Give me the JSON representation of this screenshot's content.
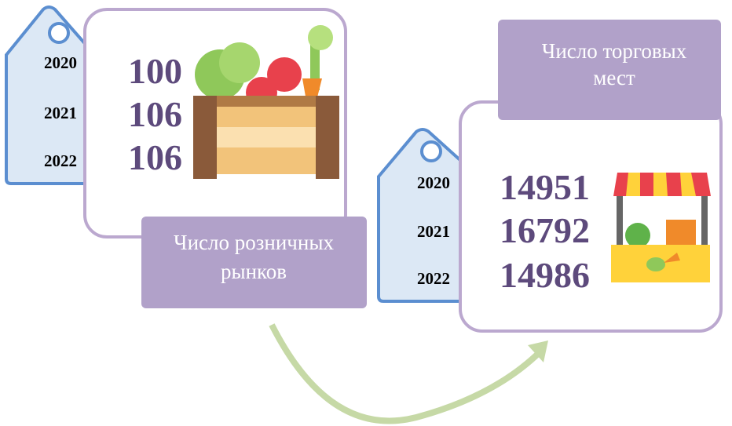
{
  "markets": {
    "label": [
      "Число розничных",
      "рынков"
    ],
    "years": [
      "2020",
      "2021",
      "2022"
    ],
    "values": [
      100,
      106,
      106
    ]
  },
  "places": {
    "label": [
      "Число торговых",
      "мест"
    ],
    "years": [
      "2020",
      "2021",
      "2022"
    ],
    "values": [
      14951,
      16792,
      14986
    ]
  }
}
